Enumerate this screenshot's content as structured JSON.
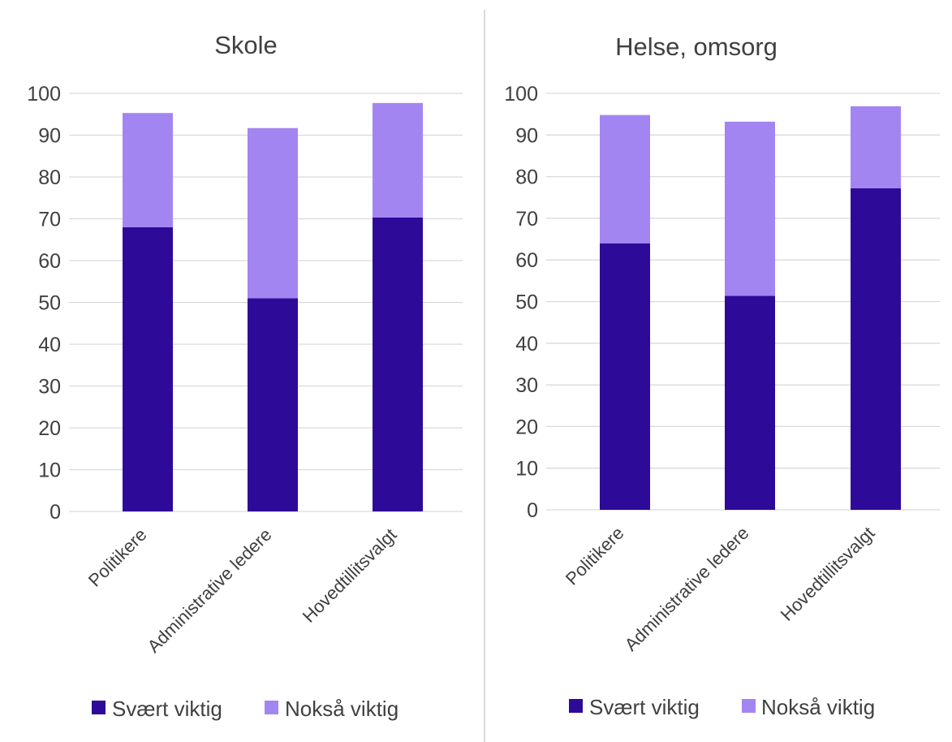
{
  "chart_data": [
    {
      "type": "bar",
      "stacked": true,
      "title": "Skole",
      "categories": [
        "Politikere",
        "Administrative ledere",
        "Hovedtillitsvalgt"
      ],
      "series": [
        {
          "name": "Svært viktig",
          "values": [
            68,
            51,
            70.3
          ],
          "color": "#2e0a99"
        },
        {
          "name": "Nokså viktig",
          "values": [
            27.3,
            40.7,
            27.4
          ],
          "color": "#a385f2"
        }
      ],
      "ylim": [
        0,
        100
      ],
      "yticks": [
        0,
        10,
        20,
        30,
        40,
        50,
        60,
        70,
        80,
        90,
        100
      ],
      "grid": true,
      "legend": "bottom"
    },
    {
      "type": "bar",
      "stacked": true,
      "title": "Helse, omsorg",
      "categories": [
        "Politikere",
        "Administrative ledere",
        "Hovedtillitsvalgt"
      ],
      "series": [
        {
          "name": "Svært viktig",
          "values": [
            64,
            51.4,
            77.2
          ],
          "color": "#2e0a99"
        },
        {
          "name": "Nokså viktig",
          "values": [
            30.8,
            41.8,
            19.7
          ],
          "color": "#a385f2"
        }
      ],
      "ylim": [
        0,
        100
      ],
      "yticks": [
        0,
        10,
        20,
        30,
        40,
        50,
        60,
        70,
        80,
        90,
        100
      ],
      "grid": true,
      "legend": "bottom"
    }
  ]
}
